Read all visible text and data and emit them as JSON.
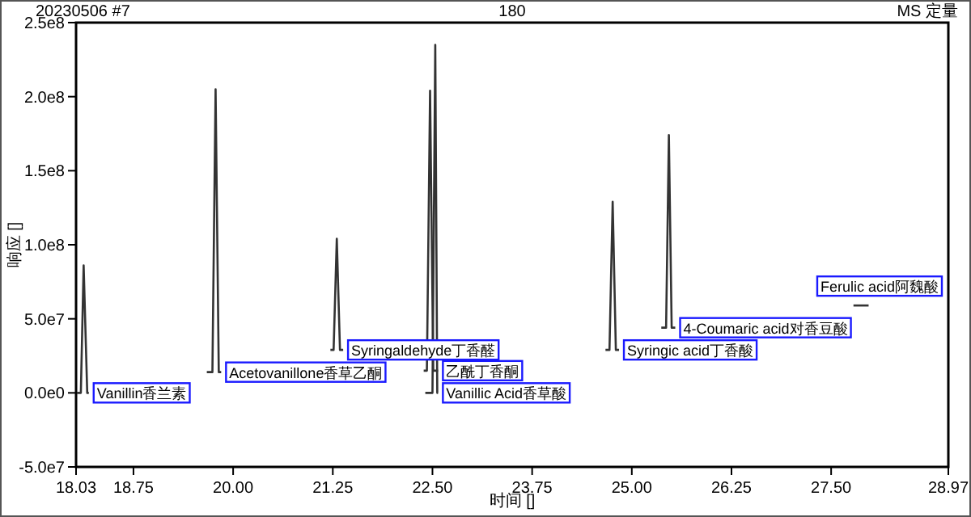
{
  "chart_data": {
    "type": "line",
    "title": "180",
    "ylabel": "响应 []",
    "xlabel": "时间 []",
    "xlim": [
      18.03,
      28.97
    ],
    "xticks": [
      18.03,
      18.75,
      {
        "value": 20,
        "label": "20.00"
      },
      21.25,
      {
        "value": 22.5,
        "label": "22.50"
      },
      23.75,
      {
        "value": 25,
        "label": "25.00"
      },
      26.25,
      {
        "value": 27.5,
        "label": "27.50"
      },
      28.97
    ],
    "ylim": [
      -50000000,
      250000000
    ],
    "yticks": [
      {
        "value": -50000000,
        "label": "-5.0e7"
      },
      {
        "value": 0,
        "label": "0.0e0"
      },
      {
        "value": 50000000,
        "label": "5.0e7"
      },
      {
        "value": 100000000,
        "label": "1.0e8"
      },
      {
        "value": 150000000,
        "label": "1.5e8"
      },
      {
        "value": 200000000,
        "label": "2.0e8"
      },
      {
        "value": 250000000,
        "label": "2.5e8"
      }
    ],
    "grid": false,
    "series": [
      {
        "color": "#333333",
        "x": [
          18.04,
          18.09,
          18.125,
          18.17,
          18.19
        ],
        "values": [
          0,
          0,
          86000000,
          0,
          0
        ]
      },
      {
        "color": "#333333",
        "x": [
          19.67,
          19.74,
          19.78,
          19.82,
          19.85
        ],
        "values": [
          14000000,
          14000000,
          205000000,
          14000000,
          14000000
        ]
      },
      {
        "color": "#333333",
        "x": [
          21.22,
          21.26,
          21.3,
          21.34,
          21.38
        ],
        "values": [
          29000000,
          29000000,
          104000000,
          29000000,
          29000000
        ]
      },
      {
        "color": "#333333",
        "x": [
          22.39,
          22.43,
          22.47,
          22.51,
          22.57
        ],
        "values": [
          15000000,
          15000000,
          204000000,
          15000000,
          15000000
        ]
      },
      {
        "color": "#333333",
        "x": [
          22.41,
          22.5,
          22.535,
          22.56,
          22.57
        ],
        "values": [
          0,
          0,
          235000000,
          0,
          0
        ]
      },
      {
        "color": "#333333",
        "x": [
          24.67,
          24.72,
          24.76,
          24.8,
          24.84
        ],
        "values": [
          29000000,
          29000000,
          129000000,
          29000000,
          29000000
        ]
      },
      {
        "color": "#333333",
        "x": [
          25.37,
          25.43,
          25.465,
          25.5,
          25.545
        ],
        "values": [
          44000000,
          44000000,
          174000000,
          44000000,
          44000000
        ]
      },
      {
        "color": "#333333",
        "x": [
          27.78,
          27.97
        ],
        "values": [
          59000000,
          59000000
        ]
      }
    ],
    "annotations": [
      "20230506 #7",
      "MS 定量",
      {
        "text": "Vanillin香兰素",
        "x": 18.19,
        "y": 0
      },
      {
        "text": "Acetovanillone香草乙酮",
        "x": 19.85,
        "y": 14000000
      },
      {
        "text": "Syringaldehyde丁香醛",
        "x": 21.38,
        "y": 29000000
      },
      {
        "text": "乙酰丁香酮",
        "x": 22.57,
        "y": 15000000
      },
      {
        "text": "Vanillic Acid香草酸",
        "x": 22.57,
        "y": 0
      },
      {
        "text": "Syringic acid丁香酸",
        "x": 24.84,
        "y": 29000000
      },
      {
        "text": "4-Coumaric acid对香豆酸",
        "x": 25.545,
        "y": 44000000
      },
      {
        "text": "Ferulic acid阿魏酸",
        "x": 27.97,
        "y": 59000000
      }
    ]
  }
}
